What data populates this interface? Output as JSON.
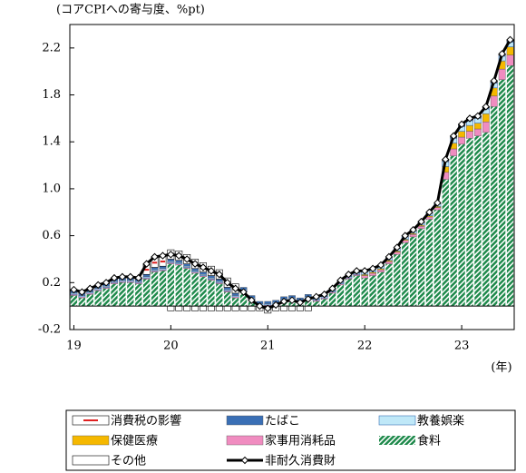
{
  "chart_data": {
    "type": "stacked-bar-line",
    "y_label": "(コアCPIへの寄与度、%pt)",
    "x_label": "(年)",
    "categories": [
      "19",
      null,
      null,
      null,
      null,
      null,
      null,
      null,
      null,
      null,
      null,
      null,
      "20",
      null,
      null,
      null,
      null,
      null,
      null,
      null,
      null,
      null,
      null,
      null,
      "21",
      null,
      null,
      null,
      null,
      null,
      null,
      null,
      null,
      null,
      null,
      null,
      "22",
      null,
      null,
      null,
      null,
      null,
      null,
      null,
      null,
      null,
      null,
      null,
      "23",
      null,
      null,
      null,
      null,
      null,
      null
    ],
    "ylim": [
      -0.2,
      2.4
    ],
    "yticks": [
      -0.2,
      0.2,
      0.6,
      {
        "value": 1,
        "label": "1.0"
      },
      1.4,
      1.8,
      2.2
    ],
    "series": [
      {
        "name": "消費税の影響",
        "color": "#e02020",
        "values": [
          0,
          0,
          0,
          0,
          0,
          0,
          0,
          0,
          0,
          0.08,
          0.08,
          0.08,
          0.08,
          0.08,
          0.08,
          0.08,
          0.08,
          0.08,
          0.08,
          0.08,
          0.08,
          0,
          0,
          0,
          0,
          0,
          0,
          0,
          0,
          0,
          0,
          0,
          0,
          0,
          0,
          0,
          0,
          0,
          0,
          0,
          0,
          0,
          0,
          0,
          0,
          0,
          0,
          0,
          0,
          0,
          0,
          0,
          0,
          0,
          0
        ]
      },
      {
        "name": "たばこ",
        "color": "#3a6fb5",
        "values": [
          0.02,
          0.02,
          0.02,
          0.02,
          0.02,
          0.02,
          0.02,
          0.02,
          0.02,
          0.02,
          0.02,
          0.02,
          0.02,
          0.02,
          0.02,
          0.02,
          0.02,
          0.02,
          0.02,
          0.02,
          0.02,
          0.02,
          0.02,
          0.02,
          0.02,
          0.02,
          0.02,
          0.02,
          0.02,
          0.02,
          0.02,
          0.02,
          0.02,
          0.02,
          0.02,
          0.02,
          0.01,
          0.01,
          0.01,
          0.01,
          0.01,
          0.01,
          0.01,
          0.01,
          0.01,
          0.01,
          0.01,
          0.01,
          0.01,
          0.01,
          0.01,
          0.01,
          0.01,
          0.01,
          0.01
        ]
      },
      {
        "name": "教養娯楽",
        "color": "#bfe8f8",
        "values": [
          0.01,
          0.01,
          0.01,
          0.01,
          0.01,
          0.01,
          0.01,
          0.01,
          0.01,
          0.01,
          0.01,
          0.01,
          0.01,
          0.01,
          0.01,
          0.01,
          0.01,
          0.01,
          0.01,
          0.01,
          0.01,
          0.01,
          0.01,
          0.01,
          0.01,
          0.01,
          0.01,
          0.01,
          0.01,
          0.01,
          0.01,
          0.01,
          0.01,
          0.01,
          0.01,
          0.01,
          0.02,
          0.02,
          0.02,
          0.02,
          0.02,
          0.02,
          0.02,
          0.02,
          0.02,
          0.02,
          0.04,
          0.04,
          0.04,
          0.04,
          0.04,
          0.04,
          0.04,
          0.04,
          0.04
        ]
      },
      {
        "name": "保健医療",
        "color": "#f5b800",
        "values": [
          0,
          0,
          0,
          0,
          0,
          0,
          0,
          0,
          0,
          0,
          0,
          0,
          0,
          0,
          0,
          0,
          0,
          0,
          0,
          0,
          0,
          0,
          0,
          0,
          0,
          0,
          0,
          0,
          0,
          0,
          0,
          0,
          0,
          0,
          0,
          0,
          0.01,
          0.01,
          0.01,
          0.01,
          0.01,
          0.01,
          0.01,
          0.01,
          0.01,
          0.01,
          0.05,
          0.05,
          0.05,
          0.05,
          0.05,
          0.07,
          0.07,
          0.07,
          0.07
        ]
      },
      {
        "name": "家事用消耗品",
        "color": "#f08cc0",
        "values": [
          0.01,
          0.01,
          0.01,
          0.01,
          0.01,
          0.01,
          0.01,
          0.01,
          0.01,
          0.01,
          0.01,
          0.01,
          0.01,
          0.01,
          0.01,
          0.01,
          0.01,
          0.01,
          0.01,
          0.01,
          0.01,
          0.01,
          0.01,
          0.01,
          0.01,
          0.01,
          0.01,
          0.01,
          0.01,
          0.01,
          0.01,
          0.01,
          0.01,
          0.01,
          0.01,
          0.01,
          0.02,
          0.02,
          0.02,
          0.02,
          0.02,
          0.02,
          0.02,
          0.02,
          0.02,
          0.02,
          0.06,
          0.06,
          0.06,
          0.06,
          0.06,
          0.09,
          0.09,
          0.09,
          0.09
        ]
      },
      {
        "name": "食料",
        "color": "#1f8a4c",
        "values": [
          0.09,
          0.07,
          0.1,
          0.13,
          0.15,
          0.19,
          0.2,
          0.2,
          0.19,
          0.23,
          0.29,
          0.3,
          0.36,
          0.35,
          0.32,
          0.28,
          0.25,
          0.22,
          0.19,
          0.12,
          0.07,
          0.12,
          0.05,
          0,
          -0.02,
          0.01,
          0.04,
          0.05,
          0.03,
          0.06,
          0.04,
          0.06,
          0.11,
          0.18,
          0.23,
          0.26,
          0.24,
          0.26,
          0.29,
          0.36,
          0.44,
          0.54,
          0.59,
          0.66,
          0.74,
          0.82,
          1.08,
          1.28,
          1.38,
          1.43,
          1.45,
          1.48,
          1.7,
          1.93,
          2.05
        ]
      },
      {
        "name": "その他",
        "color": "#ffffff",
        "values": [
          0.01,
          0.01,
          0.01,
          0.01,
          0.01,
          0.01,
          0.01,
          0.01,
          0.01,
          0.01,
          0.01,
          0.01,
          -0.04,
          -0.04,
          -0.04,
          -0.04,
          -0.04,
          -0.04,
          -0.04,
          -0.04,
          -0.04,
          -0.04,
          -0.04,
          -0.04,
          -0.04,
          -0.04,
          -0.04,
          -0.04,
          -0.04,
          -0.04,
          0,
          0,
          0,
          0,
          0,
          0,
          0,
          0,
          0,
          0,
          0,
          0,
          0,
          0,
          0,
          0,
          0.01,
          0.01,
          0.01,
          0.01,
          0.01,
          0.01,
          0.01,
          0.01,
          0.01
        ]
      },
      {
        "name": "非耐久消費財",
        "color": "#000000",
        "type": "line",
        "values": [
          0.14,
          0.12,
          0.15,
          0.18,
          0.2,
          0.24,
          0.25,
          0.25,
          0.24,
          0.36,
          0.42,
          0.43,
          0.44,
          0.43,
          0.4,
          0.36,
          0.33,
          0.3,
          0.27,
          0.2,
          0.15,
          0.12,
          0.05,
          0,
          -0.02,
          0.01,
          0.04,
          0.05,
          0.03,
          0.06,
          0.08,
          0.1,
          0.15,
          0.22,
          0.27,
          0.3,
          0.3,
          0.32,
          0.35,
          0.42,
          0.5,
          0.6,
          0.65,
          0.72,
          0.8,
          0.88,
          1.25,
          1.45,
          1.55,
          1.6,
          1.62,
          1.7,
          1.92,
          2.15,
          2.27
        ]
      }
    ]
  }
}
